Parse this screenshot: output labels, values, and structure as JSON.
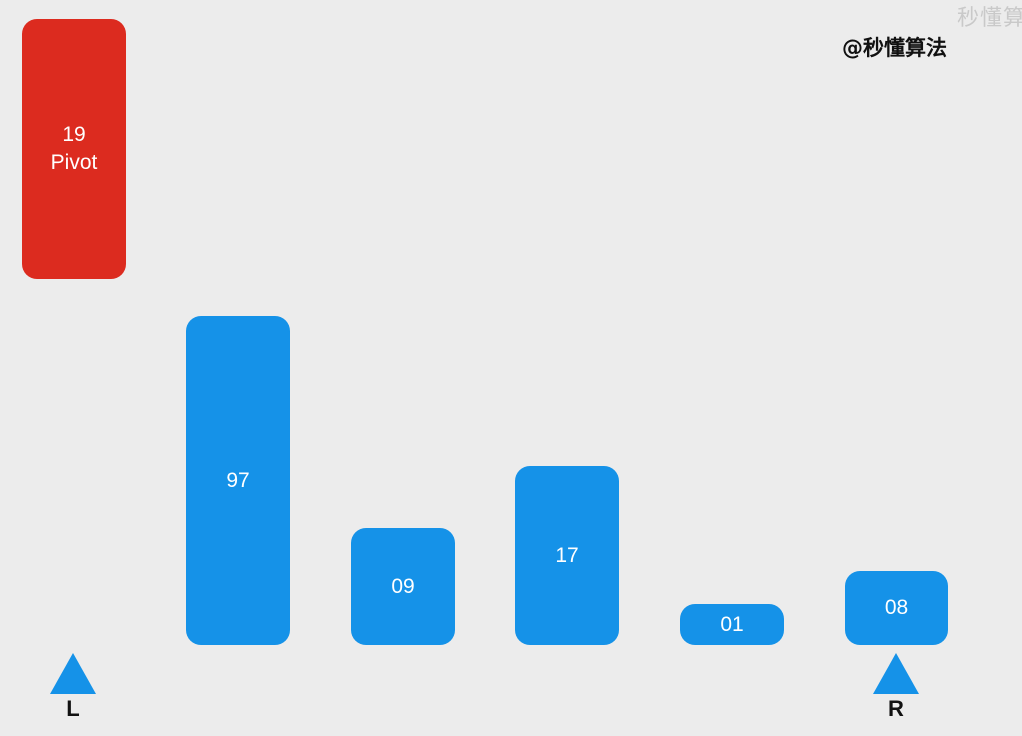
{
  "watermark": "秒懂算",
  "brand": "@秒懂算法",
  "pivot": {
    "value": "19",
    "label": "Pivot",
    "color": "#dc2b1f"
  },
  "bars": [
    {
      "value": "97",
      "magnitude": 97
    },
    {
      "value": "09",
      "magnitude": 9
    },
    {
      "value": "17",
      "magnitude": 17
    },
    {
      "value": "01",
      "magnitude": 1
    },
    {
      "value": "08",
      "magnitude": 8
    }
  ],
  "bar_color": "#1592e8",
  "pointers": {
    "left": {
      "label": "L",
      "index": "pivot"
    },
    "right": {
      "label": "R",
      "index": 4
    }
  }
}
